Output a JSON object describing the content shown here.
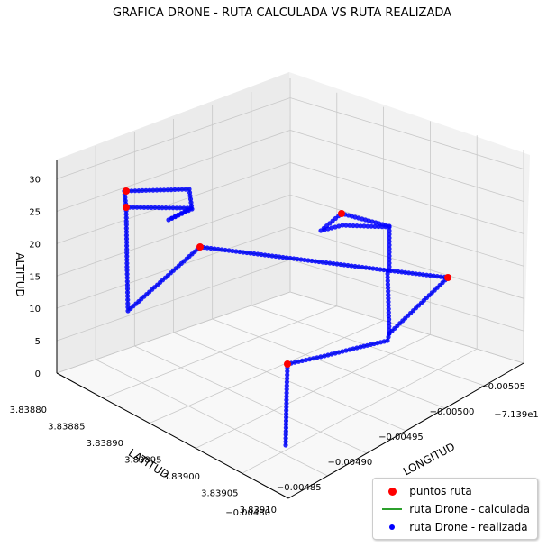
{
  "chart_data": {
    "type": "scatter",
    "title": "GRAFICA DRONE - RUTA CALCULADA VS RUTA REALIZADA",
    "xlabel": "LONGITUD",
    "ylabel": "LATITUD",
    "zlabel": "ALTITUD",
    "x_offset_label": "−7.139e1",
    "x_ticks": [
      "−0.00505",
      "−0.00500",
      "−0.00495",
      "−0.00490",
      "−0.00485",
      "−0.00480"
    ],
    "y_ticks": [
      "3.83880",
      "3.83885",
      "3.83890",
      "3.83895",
      "3.83900",
      "3.83905",
      "3.83910"
    ],
    "z_ticks": [
      "0",
      "5",
      "10",
      "15",
      "20",
      "25",
      "30"
    ],
    "xlim": [
      -0.00505,
      -0.0048
    ],
    "ylim": [
      3.8388,
      3.8391
    ],
    "zlim": [
      0,
      33
    ],
    "grid": true,
    "legend_position": "bottom-right",
    "series": [
      {
        "name": "puntos ruta",
        "kind": "scatter",
        "color": "#ff0000",
        "points": [
          {
            "lon": -0.00488,
            "lat": 3.83908,
            "alt": 15
          },
          {
            "lon": -0.00478,
            "lat": 3.83902,
            "alt": 16
          },
          {
            "lon": -0.00492,
            "lat": 3.83882,
            "alt": 16
          },
          {
            "lon": -0.00497,
            "lat": 3.83885,
            "alt": 30
          },
          {
            "lon": -0.00499,
            "lat": 3.83887,
            "alt": 29
          },
          {
            "lon": -0.00503,
            "lat": 3.83897,
            "alt": 16
          }
        ]
      },
      {
        "name": "ruta Drone - calculada",
        "kind": "line",
        "color": "#2ca02c"
      },
      {
        "name": "ruta Drone - realizada",
        "kind": "scatter",
        "color": "#0000ff"
      }
    ]
  }
}
